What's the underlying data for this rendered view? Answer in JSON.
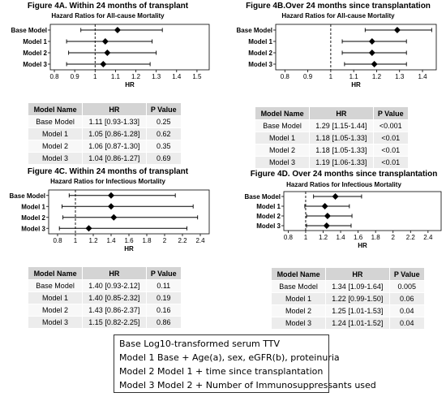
{
  "chart_data": [
    {
      "type": "scatter",
      "title": "Figure 4A. Within 24 months of transplant",
      "subtitle": "Hazard Ratios for All-cause Mortality",
      "xlabel": "HR",
      "ylabel": "",
      "xlim": [
        0.78,
        1.56
      ],
      "xticks": [
        "0.8",
        "0.9",
        "1",
        "1.1",
        "1.2",
        "1.3",
        "1.4",
        "1.5"
      ],
      "reference_line": 1,
      "categories": [
        "Base Model",
        "Model 1",
        "Model 2",
        "Model 3"
      ],
      "hr": [
        1.11,
        1.05,
        1.06,
        1.04
      ],
      "ci_low": [
        0.93,
        0.86,
        0.87,
        0.86
      ],
      "ci_high": [
        1.33,
        1.28,
        1.3,
        1.27
      ],
      "table": {
        "headers": [
          "Model Name",
          "HR",
          "P Value"
        ],
        "rows": [
          [
            "Base Model",
            "1.11 [0.93-1.33]",
            "0.25"
          ],
          [
            "Model 1",
            "1.05 [0.86-1.28]",
            "0.62"
          ],
          [
            "Model 2",
            "1.06 [0.87-1.30]",
            "0.35"
          ],
          [
            "Model 3",
            "1.04 [0.86-1.27]",
            "0.69"
          ]
        ]
      }
    },
    {
      "type": "scatter",
      "title": "Figure 4B.Over 24 months since transplantation",
      "subtitle": "Hazard Ratios for All-cause Mortality",
      "xlabel": "HR",
      "ylabel": "",
      "xlim": [
        0.76,
        1.46
      ],
      "xticks": [
        "0.8",
        "0.9",
        "1",
        "1.1",
        "1.2",
        "1.3",
        "1.4"
      ],
      "reference_line": 1,
      "categories": [
        "Base Model",
        "Model 1",
        "Model 2",
        "Model 3"
      ],
      "hr": [
        1.29,
        1.18,
        1.18,
        1.19
      ],
      "ci_low": [
        1.15,
        1.05,
        1.05,
        1.06
      ],
      "ci_high": [
        1.44,
        1.33,
        1.33,
        1.33
      ],
      "table": {
        "headers": [
          "Model Name",
          "HR",
          "P Value"
        ],
        "rows": [
          [
            "Base Model",
            "1.29 [1.15-1.44]",
            "<0.001"
          ],
          [
            "Model 1",
            "1.18 [1.05-1.33]",
            "<0.01"
          ],
          [
            "Model 2",
            "1.18 [1.05-1.33]",
            "<0.01"
          ],
          [
            "Model 3",
            "1.19 [1.06-1.33]",
            "<0.01"
          ]
        ]
      }
    },
    {
      "type": "scatter",
      "title": "Figure 4C. Within 24 months of transplant",
      "subtitle": "Hazard Ratios for Infectious Mortality",
      "xlabel": "HR",
      "ylabel": "",
      "xlim": [
        0.7,
        2.5
      ],
      "xticks": [
        "0.8",
        "1",
        "1.2",
        "1.4",
        "1.6",
        "1.8",
        "2",
        "2.2",
        "2.4"
      ],
      "reference_line": 1,
      "categories": [
        "Base Model",
        "Model 1",
        "Model 2",
        "Model 3"
      ],
      "hr": [
        1.4,
        1.4,
        1.43,
        1.15
      ],
      "ci_low": [
        0.93,
        0.85,
        0.86,
        0.82
      ],
      "ci_high": [
        2.12,
        2.32,
        2.37,
        2.25
      ],
      "table": {
        "headers": [
          "Model Name",
          "HR",
          "P Value"
        ],
        "rows": [
          [
            "Base Model",
            "1.40 [0.93-2.12]",
            "0.11"
          ],
          [
            "Model 1",
            "1.40 [0.85-2.32]",
            "0.19"
          ],
          [
            "Model 2",
            "1.43 [0.86-2.37]",
            "0.16"
          ],
          [
            "Model 3",
            "1.15 [0.82-2.25]",
            "0.86"
          ]
        ]
      }
    },
    {
      "type": "scatter",
      "title": "Figure 4D. Over 24 months since transplantation",
      "subtitle": "Hazard Ratios for Infectious Mortality",
      "xlabel": "HR",
      "ylabel": "",
      "xlim": [
        0.75,
        2.55
      ],
      "xticks": [
        "0.8",
        "1",
        "1.2",
        "1.4",
        "1.6",
        "1.8",
        "2",
        "2.2",
        "2.4"
      ],
      "reference_line": 1,
      "categories": [
        "Base Model",
        "Model 1",
        "Model 2",
        "Model 3"
      ],
      "hr": [
        1.34,
        1.22,
        1.25,
        1.24
      ],
      "ci_low": [
        1.09,
        0.99,
        1.01,
        1.01
      ],
      "ci_high": [
        1.64,
        1.5,
        1.53,
        1.52
      ],
      "table": {
        "headers": [
          "Model Name",
          "HR",
          "P Value"
        ],
        "rows": [
          [
            "Base Model",
            "1.34 [1.09-1.64]",
            "0.005"
          ],
          [
            "Model 1",
            "1.22 [0.99-1.50]",
            "0.06"
          ],
          [
            "Model 2",
            "1.25 [1.01-1.53]",
            "0.04"
          ],
          [
            "Model 3",
            "1.24 [1.01-1.52]",
            "0.04"
          ]
        ]
      }
    }
  ],
  "legend": {
    "lines": [
      "Base Log10-transformed serum TTV",
      "Model 1 Base + Age(a), sex, eGFR(b), proteinuria",
      "Model 2 Model 1 + time since transplantation",
      "Model 3 Model 2 + Number of Immunosuppressants used"
    ]
  }
}
